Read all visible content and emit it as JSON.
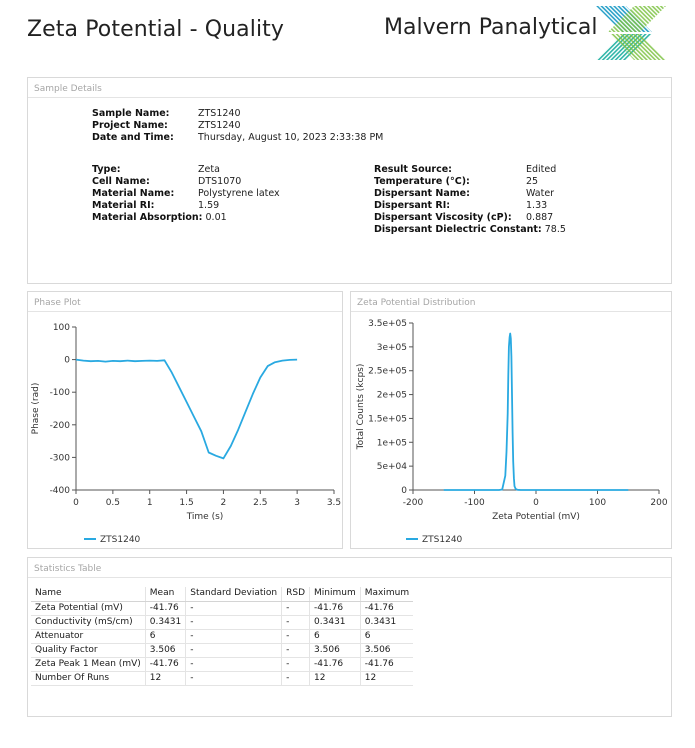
{
  "header": {
    "title": "Zeta Potential - Quality",
    "brand": "Malvern Panalytical"
  },
  "colors": {
    "accent": "#29a9e1",
    "logo_teal": "#2fb5a8",
    "logo_green": "#7cc242"
  },
  "sample_details": {
    "panel_title": "Sample Details",
    "sample_name_label": "Sample Name:",
    "sample_name": "ZTS1240",
    "project_name_label": "Project Name:",
    "project_name": "ZTS1240",
    "date_time_label": "Date and Time:",
    "date_time": "Thursday, August 10, 2023 2:33:38 PM",
    "type_label": "Type:",
    "type": "Zeta",
    "cell_name_label": "Cell Name:",
    "cell_name": "DTS1070",
    "material_name_label": "Material Name:",
    "material_name": "Polystyrene latex",
    "material_ri_label": "Material RI:",
    "material_ri": "1.59",
    "material_absorption_label": "Material Absorption:",
    "material_absorption": "0.01",
    "result_source_label": "Result Source:",
    "result_source": "Edited",
    "temperature_label": "Temperature (°C):",
    "temperature": "25",
    "dispersant_name_label": "Dispersant Name:",
    "dispersant_name": "Water",
    "dispersant_ri_label": "Dispersant RI:",
    "dispersant_ri": "1.33",
    "dispersant_viscosity_label": "Dispersant Viscosity (cP):",
    "dispersant_viscosity": "0.887",
    "dispersant_dielectric_label": "Dispersant Dielectric Constant:",
    "dispersant_dielectric": "78.5"
  },
  "chart_data": [
    {
      "type": "line",
      "panel_title": "Phase Plot",
      "xlabel": "Time (s)",
      "ylabel": "Phase (rad)",
      "xlim": [
        0,
        3.5
      ],
      "ylim": [
        -400,
        100
      ],
      "xticks": [
        "0",
        "0.5",
        "1",
        "1.5",
        "2",
        "2.5",
        "3",
        "3.5"
      ],
      "yticks": [
        "100",
        "0",
        "-100",
        "-200",
        "-300",
        "-400"
      ],
      "legend": "top-left-bottom",
      "series": [
        {
          "name": "ZTS1240",
          "x": [
            0,
            0.1,
            0.2,
            0.3,
            0.4,
            0.5,
            0.6,
            0.7,
            0.8,
            0.9,
            1.0,
            1.1,
            1.2,
            1.3,
            1.4,
            1.5,
            1.6,
            1.7,
            1.8,
            1.9,
            2.0,
            2.1,
            2.2,
            2.3,
            2.4,
            2.5,
            2.6,
            2.7,
            2.8,
            2.9,
            3.0
          ],
          "y": [
            0,
            -3,
            -5,
            -4,
            -6,
            -4,
            -5,
            -3,
            -5,
            -4,
            -3,
            -4,
            -2,
            -40,
            -85,
            -130,
            -175,
            -220,
            -285,
            -295,
            -303,
            -265,
            -215,
            -160,
            -105,
            -55,
            -20,
            -8,
            -3,
            -1,
            0
          ]
        }
      ]
    },
    {
      "type": "line",
      "panel_title": "Zeta Potential Distribution",
      "xlabel": "Zeta Potential (mV)",
      "ylabel": "Total Counts (kcps)",
      "xlim": [
        -200,
        200
      ],
      "ylim": [
        0,
        350000
      ],
      "xticks": [
        "-200",
        "-100",
        "0",
        "100",
        "200"
      ],
      "yticks": [
        "3.5e+05",
        "3e+05",
        "2.5e+05",
        "2e+05",
        "1.5e+05",
        "1e+05",
        "5e+04",
        "0"
      ],
      "legend": "bottom",
      "series": [
        {
          "name": "ZTS1240",
          "x": [
            -150,
            -60,
            -55,
            -50,
            -48,
            -46,
            -45,
            -44,
            -43,
            -42,
            -41,
            -40,
            -39,
            -38,
            -37,
            -36,
            -35,
            -33,
            -30,
            -25,
            150
          ],
          "y": [
            0,
            0,
            1000,
            30000,
            80000,
            160000,
            240000,
            300000,
            320000,
            328000,
            318000,
            280000,
            200000,
            120000,
            60000,
            25000,
            8000,
            2000,
            500,
            0,
            0
          ]
        }
      ]
    }
  ],
  "statistics": {
    "panel_title": "Statistics Table",
    "columns": [
      "Name",
      "Mean",
      "Standard Deviation",
      "RSD",
      "Minimum",
      "Maximum"
    ],
    "rows": [
      [
        "Zeta Potential (mV)",
        "-41.76",
        "-",
        "-",
        "-41.76",
        "-41.76"
      ],
      [
        "Conductivity (mS/cm)",
        "0.3431",
        "-",
        "-",
        "0.3431",
        "0.3431"
      ],
      [
        "Attenuator",
        "6",
        "-",
        "-",
        "6",
        "6"
      ],
      [
        "Quality Factor",
        "3.506",
        "-",
        "-",
        "3.506",
        "3.506"
      ],
      [
        "Zeta Peak 1 Mean (mV)",
        "-41.76",
        "-",
        "-",
        "-41.76",
        "-41.76"
      ],
      [
        "Number Of Runs",
        "12",
        "-",
        "-",
        "12",
        "12"
      ]
    ]
  }
}
